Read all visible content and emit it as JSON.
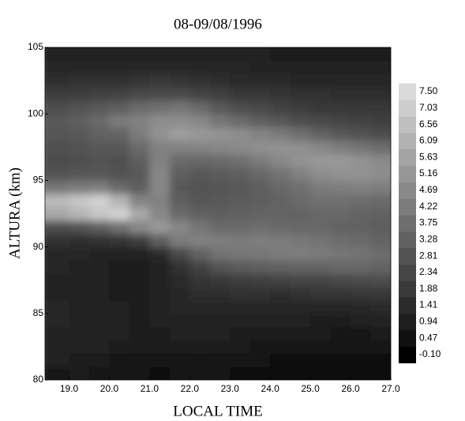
{
  "chart_data": {
    "type": "heatmap",
    "title": "08-09/08/1996",
    "x_label": "LOCAL TIME",
    "y_label": "ALTURA (km)",
    "xlim": [
      18.4,
      27
    ],
    "ylim": [
      80,
      105
    ],
    "xticks": [
      {
        "value": 19,
        "label": "19.0"
      },
      {
        "value": 20,
        "label": "20.0"
      },
      {
        "value": 21,
        "label": "21.0"
      },
      {
        "value": 22,
        "label": "22.0"
      },
      {
        "value": 23,
        "label": "23.0"
      },
      {
        "value": 24,
        "label": "24.0"
      },
      {
        "value": 25,
        "label": "25.0"
      },
      {
        "value": 26,
        "label": "26.0"
      },
      {
        "value": 27,
        "label": "27.0"
      }
    ],
    "yticks": [
      80,
      85,
      90,
      95,
      100,
      105
    ],
    "colorbar_ticks": [
      {
        "value": -0.1,
        "label": "-0.10"
      },
      0.47,
      0.94,
      1.41,
      1.88,
      2.34,
      2.81,
      3.28,
      3.75,
      4.22,
      4.69,
      5.16,
      5.63,
      6.09,
      6.56,
      7.03,
      {
        "value": 7.5,
        "label": "7.50"
      }
    ],
    "colors": [
      "#000000",
      "#dadada"
    ],
    "x": [
      18.75,
      19.25,
      19.75,
      20.25,
      20.75,
      21.25,
      21.75,
      22.25,
      22.75,
      23.25,
      23.75,
      24.25,
      24.75,
      25.25,
      25.75,
      26.25,
      26.75
    ],
    "y": [
      80.5,
      81.5,
      82.5,
      83.5,
      84.5,
      85.5,
      86.5,
      87.5,
      88.5,
      89.5,
      90.5,
      91.5,
      92.5,
      93.5,
      94.5,
      95.5,
      96.5,
      97.5,
      98.5,
      99.5,
      100.5,
      101.5,
      102.5,
      103.5,
      104.5
    ],
    "z": [
      [
        0.7,
        0.8,
        0.7,
        0.6,
        0.6,
        0.5,
        0.6,
        0.6,
        0.6,
        0.5,
        0.5,
        0.5,
        0.5,
        0.5,
        0.5,
        0.5,
        0.5
      ],
      [
        1.0,
        0.9,
        0.8,
        0.7,
        0.7,
        0.6,
        0.7,
        0.7,
        0.6,
        0.6,
        0.6,
        0.5,
        0.5,
        0.5,
        0.5,
        0.5,
        0.5
      ],
      [
        1.1,
        1.0,
        1.0,
        0.9,
        0.8,
        0.8,
        0.8,
        0.9,
        0.8,
        0.8,
        0.7,
        0.7,
        0.6,
        0.6,
        0.6,
        0.6,
        0.6
      ],
      [
        1.1,
        1.1,
        1.0,
        1.0,
        0.9,
        0.9,
        1.0,
        1.0,
        1.0,
        0.9,
        0.9,
        0.8,
        0.8,
        0.8,
        0.7,
        0.7,
        0.8
      ],
      [
        1.2,
        1.1,
        1.1,
        1.0,
        0.9,
        1.0,
        1.1,
        1.1,
        1.1,
        1.0,
        1.0,
        1.0,
        1.0,
        0.9,
        0.9,
        1.0,
        1.1
      ],
      [
        1.2,
        1.1,
        1.0,
        1.0,
        0.9,
        1.0,
        1.2,
        1.3,
        1.3,
        1.3,
        1.2,
        1.2,
        1.2,
        1.2,
        1.3,
        1.3,
        1.4
      ],
      [
        1.1,
        1.1,
        1.0,
        0.9,
        0.8,
        1.0,
        1.3,
        1.5,
        1.5,
        1.6,
        1.6,
        1.5,
        1.6,
        1.7,
        1.7,
        1.8,
        1.9
      ],
      [
        1.1,
        1.0,
        1.0,
        0.9,
        0.8,
        1.0,
        1.4,
        1.7,
        1.9,
        2.0,
        2.1,
        2.2,
        2.3,
        2.3,
        2.4,
        2.5,
        2.6
      ],
      [
        1.2,
        1.1,
        1.0,
        0.9,
        0.9,
        1.1,
        1.6,
        2.2,
        2.8,
        3.1,
        3.2,
        3.3,
        3.4,
        3.4,
        3.5,
        3.5,
        3.4
      ],
      [
        1.3,
        1.2,
        1.1,
        1.1,
        1.1,
        1.4,
        2.4,
        3.3,
        3.9,
        4.0,
        4.1,
        4.2,
        4.3,
        4.2,
        4.0,
        3.9,
        3.7
      ],
      [
        1.6,
        1.5,
        1.6,
        1.7,
        2.0,
        3.2,
        4.2,
        4.4,
        4.3,
        4.2,
        4.3,
        4.2,
        4.1,
        3.9,
        3.7,
        3.6,
        3.4
      ],
      [
        2.6,
        2.8,
        3.2,
        3.8,
        4.6,
        5.2,
        4.6,
        4.0,
        3.6,
        3.6,
        3.7,
        3.6,
        3.5,
        3.5,
        3.4,
        3.3,
        3.2
      ],
      [
        5.8,
        6.2,
        6.8,
        7.2,
        5.8,
        4.6,
        3.6,
        3.3,
        3.2,
        3.3,
        3.4,
        3.4,
        3.4,
        3.5,
        3.5,
        3.4,
        3.3
      ],
      [
        6.4,
        6.8,
        7.2,
        6.2,
        4.5,
        4.4,
        3.2,
        2.9,
        3.0,
        3.1,
        3.2,
        3.4,
        3.6,
        3.8,
        3.8,
        3.7,
        3.6
      ],
      [
        4.0,
        4.2,
        4.3,
        3.6,
        3.2,
        4.6,
        3.0,
        2.8,
        2.9,
        3.0,
        3.2,
        3.5,
        3.8,
        4.2,
        4.3,
        4.4,
        4.3
      ],
      [
        2.8,
        2.9,
        3.0,
        2.8,
        3.0,
        4.6,
        3.2,
        3.0,
        3.1,
        3.2,
        3.5,
        3.9,
        4.4,
        4.8,
        5.0,
        5.0,
        4.8
      ],
      [
        2.6,
        2.7,
        2.8,
        2.7,
        3.2,
        4.4,
        3.6,
        3.5,
        3.6,
        3.8,
        4.2,
        4.6,
        5.0,
        5.2,
        5.2,
        5.0,
        4.7
      ],
      [
        2.7,
        2.8,
        3.0,
        3.0,
        3.6,
        4.4,
        4.4,
        4.5,
        4.6,
        4.7,
        4.9,
        5.0,
        4.9,
        4.6,
        4.3,
        4.0,
        3.7
      ],
      [
        2.9,
        3.0,
        3.3,
        3.4,
        4.2,
        5.0,
        5.4,
        5.2,
        5.0,
        4.8,
        4.5,
        4.2,
        3.8,
        3.4,
        3.0,
        2.8,
        2.6
      ],
      [
        3.0,
        3.2,
        3.6,
        4.2,
        4.4,
        4.8,
        4.8,
        4.6,
        4.0,
        3.6,
        3.2,
        2.9,
        2.6,
        2.4,
        2.3,
        2.2,
        2.1
      ],
      [
        2.6,
        2.8,
        3.0,
        3.2,
        3.6,
        3.8,
        4.0,
        3.6,
        3.0,
        2.6,
        2.4,
        2.2,
        2.0,
        1.9,
        1.8,
        1.8,
        1.8
      ],
      [
        2.0,
        2.0,
        2.2,
        2.2,
        2.4,
        2.5,
        2.5,
        2.3,
        2.1,
        1.9,
        1.8,
        1.7,
        1.6,
        1.6,
        1.5,
        1.5,
        1.5
      ],
      [
        1.5,
        1.6,
        1.6,
        1.6,
        1.7,
        1.8,
        1.7,
        1.6,
        1.5,
        1.4,
        1.4,
        1.4,
        1.3,
        1.3,
        1.3,
        1.3,
        1.3
      ],
      [
        1.2,
        1.3,
        1.3,
        1.3,
        1.3,
        1.3,
        1.3,
        1.2,
        1.2,
        1.2,
        1.1,
        1.1,
        1.1,
        1.1,
        1.1,
        1.1,
        1.1
      ],
      [
        1.0,
        1.1,
        1.1,
        1.1,
        1.1,
        1.0,
        1.0,
        1.0,
        1.0,
        1.0,
        1.0,
        0.9,
        0.9,
        0.9,
        0.9,
        0.9,
        0.9
      ]
    ]
  }
}
